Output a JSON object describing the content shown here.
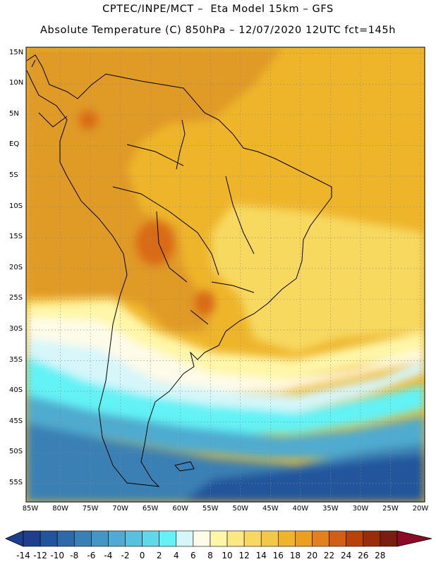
{
  "header": {
    "line1": "CPTEC/INPE/MCT –  Eta Model 15km – GFS",
    "line2": "Absolute Temperature (C) 850hPa – 12/07/2020 12UTC fct=145h"
  },
  "axes": {
    "lat_labels": [
      "15N",
      "10N",
      "5N",
      "EQ",
      "5S",
      "10S",
      "15S",
      "20S",
      "25S",
      "30S",
      "35S",
      "40S",
      "45S",
      "50S",
      "55S"
    ],
    "lon_labels": [
      "85W",
      "80W",
      "75W",
      "70W",
      "65W",
      "60W",
      "55W",
      "50W",
      "45W",
      "40W",
      "35W",
      "30W",
      "25W",
      "20W"
    ],
    "lon_range": [
      -85,
      -20
    ],
    "lat_range": [
      -58,
      16
    ]
  },
  "colorbar": {
    "labels": [
      "-14",
      "-12",
      "-10",
      "-8",
      "-6",
      "-4",
      "-2",
      "0",
      "2",
      "4",
      "6",
      "8",
      "10",
      "12",
      "14",
      "16",
      "18",
      "20",
      "22",
      "24",
      "26",
      "28"
    ],
    "colors": [
      "#1f3f8c",
      "#24549c",
      "#2f6aa8",
      "#3a80b4",
      "#4596c2",
      "#4fabcf",
      "#57c2dc",
      "#5fd9e8",
      "#64f2f6",
      "#d6f6fa",
      "#fefbe9",
      "#fff6a8",
      "#fbe882",
      "#f7d961",
      "#f2c847",
      "#eeb52b",
      "#ec9f1f",
      "#e4801b",
      "#d35d10",
      "#b9420b",
      "#9a2c0c",
      "#7a1c10",
      "#8b0b24"
    ],
    "unit": "C"
  },
  "map": {
    "region": "South America",
    "variable": "Absolute Temperature 850hPa",
    "colors": {
      "hot": "#e09a28",
      "warm": "#eeb52b",
      "mild": "#f7d961",
      "pale": "#fff6a8",
      "cream": "#fefbe9",
      "ice": "#d6f6fa",
      "cyan": "#64f2f6",
      "teal": "#4fabcf",
      "blue": "#3a80b4",
      "deep": "#24549c",
      "hotspot": "#d96a18",
      "coast": "#000000",
      "grid": "#888888"
    }
  }
}
